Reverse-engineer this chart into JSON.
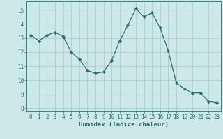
{
  "x": [
    0,
    1,
    2,
    3,
    4,
    5,
    6,
    7,
    8,
    9,
    10,
    11,
    12,
    13,
    14,
    15,
    16,
    17,
    18,
    19,
    20,
    21,
    22,
    23
  ],
  "y": [
    13.2,
    12.8,
    13.2,
    13.4,
    13.1,
    12.0,
    11.5,
    10.7,
    10.5,
    10.6,
    11.4,
    12.8,
    13.9,
    15.1,
    14.5,
    14.8,
    13.7,
    12.1,
    9.8,
    9.4,
    9.1,
    9.1,
    8.5,
    8.4
  ],
  "line_color": "#2d6e6e",
  "marker": "D",
  "marker_size": 2.2,
  "bg_color": "#cce8e8",
  "grid_color": "#aacfcf",
  "xlabel": "Humidex (Indice chaleur)",
  "ylim": [
    7.8,
    15.6
  ],
  "yticks": [
    8,
    9,
    10,
    11,
    12,
    13,
    14,
    15
  ],
  "xticks": [
    0,
    1,
    2,
    3,
    4,
    5,
    6,
    7,
    8,
    9,
    10,
    11,
    12,
    13,
    14,
    15,
    16,
    17,
    18,
    19,
    20,
    21,
    22,
    23
  ],
  "tick_color": "#2d6e6e",
  "label_fontsize": 6.5,
  "tick_fontsize": 5.5,
  "line_width": 0.9
}
